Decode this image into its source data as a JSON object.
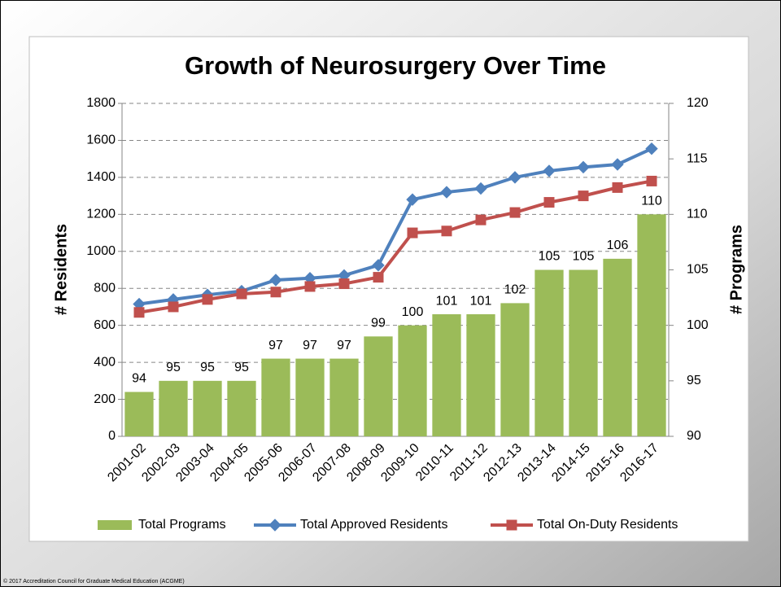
{
  "chart_data": {
    "type": "combo",
    "title": "Growth of Neurosurgery Over Time",
    "y_label": "# Residents",
    "y2_label": "# Programs",
    "categories": [
      "2001-02",
      "2002-03",
      "2003-04",
      "2004-05",
      "2005-06",
      "2006-07",
      "2007-08",
      "2008-09",
      "2009-10",
      "2010-11",
      "2011-12",
      "2012-13",
      "2013-14",
      "2014-15",
      "2015-16",
      "2016-17"
    ],
    "series": [
      {
        "name": "Total Programs",
        "type": "bar",
        "axis": "y2",
        "color": "#9bbb59",
        "values": [
          94,
          95,
          95,
          95,
          97,
          97,
          97,
          99,
          100,
          101,
          101,
          102,
          105,
          105,
          106,
          110
        ]
      },
      {
        "name": "Total Approved Residents",
        "type": "line",
        "marker": "diamond",
        "color": "#4f81bd",
        "values": [
          715,
          740,
          765,
          785,
          845,
          855,
          870,
          925,
          1280,
          1320,
          1340,
          1400,
          1435,
          1455,
          1470,
          1555
        ]
      },
      {
        "name": "Total On-Duty Residents",
        "type": "line",
        "marker": "square",
        "color": "#c0504d",
        "values": [
          670,
          700,
          740,
          770,
          780,
          810,
          825,
          860,
          1100,
          1110,
          1170,
          1210,
          1265,
          1300,
          1345,
          1380
        ]
      }
    ],
    "ylim": [
      0,
      1800
    ],
    "yticks": [
      0,
      200,
      400,
      600,
      800,
      1000,
      1200,
      1400,
      1600,
      1800
    ],
    "y2lim": [
      90,
      120
    ],
    "y2ticks": [
      90,
      95,
      100,
      105,
      110,
      115,
      120
    ],
    "grid": true,
    "legend": "bottom"
  },
  "footer": "© 2017 Accreditation Council for Graduate Medical Education (ACGME)"
}
